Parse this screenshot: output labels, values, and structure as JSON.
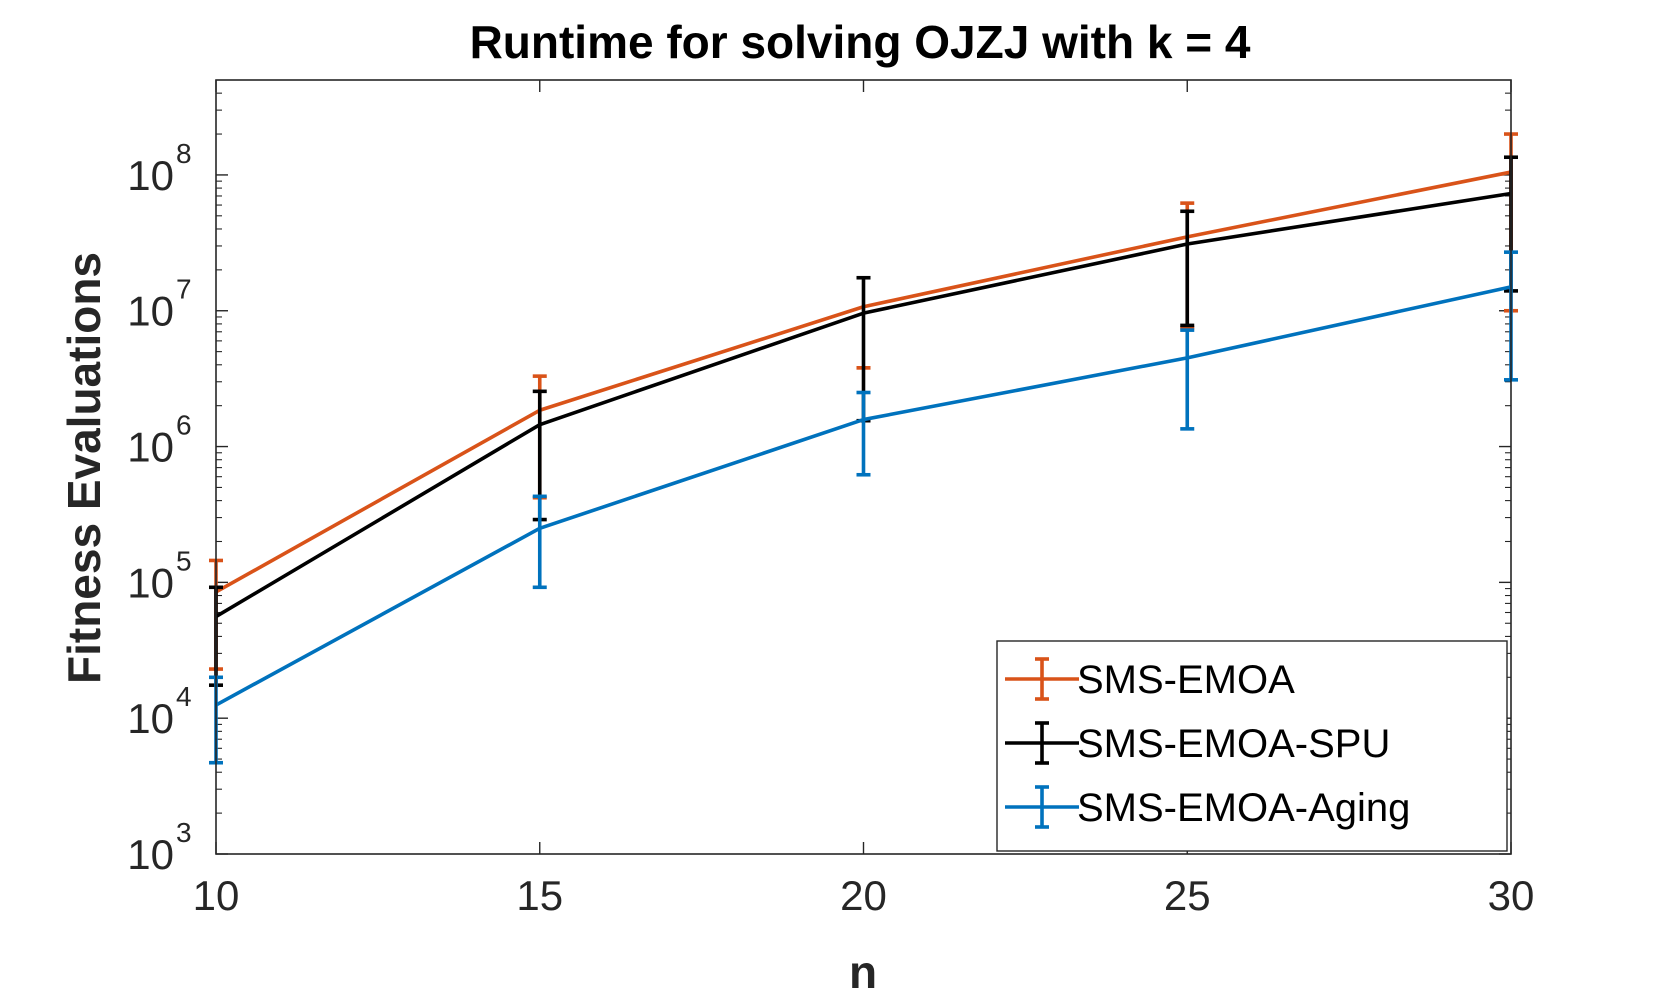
{
  "chart_data": {
    "type": "line",
    "title": "Runtime for solving OJZJ with k = 4",
    "xlabel": "n",
    "ylabel": "Fitness Evaluations",
    "yscale": "log",
    "xlim": [
      10,
      30
    ],
    "ylim": [
      1000,
      500000000
    ],
    "x": [
      10,
      15,
      20,
      25,
      30
    ],
    "x_ticks": [
      "10",
      "15",
      "20",
      "25",
      "30"
    ],
    "y_ticks": [
      {
        "base": "10",
        "exp": "3",
        "value": 1000
      },
      {
        "base": "10",
        "exp": "4",
        "value": 10000
      },
      {
        "base": "10",
        "exp": "5",
        "value": 100000
      },
      {
        "base": "10",
        "exp": "6",
        "value": 1000000
      },
      {
        "base": "10",
        "exp": "7",
        "value": 10000000
      },
      {
        "base": "10",
        "exp": "8",
        "value": 100000000
      }
    ],
    "legend_position": "bottom-right",
    "series": [
      {
        "name": "SMS-EMOA",
        "color": "#D95319",
        "values": [
          85000,
          1850000,
          10700000,
          35000000,
          105000000
        ],
        "err_low": [
          23000,
          420000,
          3800000,
          7500000,
          10000000
        ],
        "err_high": [
          145000,
          3300000,
          3800000,
          62000000,
          200000000
        ]
      },
      {
        "name": "SMS-EMOA-SPU",
        "color": "#000000",
        "values": [
          56000,
          1450000,
          9600000,
          31000000,
          73000000
        ],
        "err_low": [
          17500,
          290000,
          1550000,
          7800000,
          14000000
        ],
        "err_high": [
          92000,
          2550000,
          17500000,
          54000000,
          135000000
        ]
      },
      {
        "name": "SMS-EMOA-Aging",
        "color": "#0072BD",
        "values": [
          12500,
          250000,
          1580000,
          4500000,
          15000000
        ],
        "err_low": [
          4700,
          92000,
          620000,
          1350000,
          3100000
        ],
        "err_high": [
          20000,
          430000,
          2500000,
          7200000,
          27000000
        ]
      }
    ]
  }
}
